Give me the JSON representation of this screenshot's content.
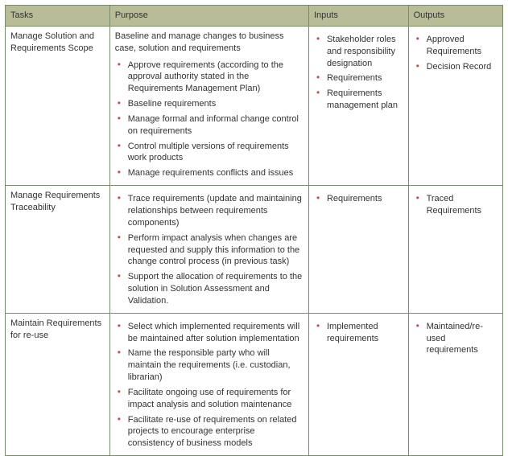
{
  "table": {
    "headers": [
      "Tasks",
      "Purpose",
      "Inputs",
      "Outputs"
    ],
    "header_bg": "#b8bd98",
    "border_color": "#7a8a6a",
    "bullet_color": "#c0504d",
    "font_size_pt": 8,
    "col_widths_pct": [
      21,
      40,
      20,
      19
    ],
    "rows": [
      {
        "task": "Manage Solution and Requirements Scope",
        "purpose_lead": "Baseline and manage changes to business case, solution and requirements",
        "purpose_items": [
          "Approve requirements (according to the approval authority stated in the Requirements Management Plan)",
          "Baseline requirements",
          "Manage formal and informal change control on requirements",
          "Control multiple versions of requirements work products",
          "Manage requirements conflicts and issues"
        ],
        "inputs": [
          "Stakeholder roles and responsibility designation",
          "Requirements",
          "Requirements management plan"
        ],
        "outputs": [
          "Approved Requirements",
          "Decision Record"
        ]
      },
      {
        "task": "Manage Requirements Traceability",
        "purpose_lead": "",
        "purpose_items": [
          "Trace requirements (update and maintaining relationships between requirements components)",
          "Perform impact analysis when changes are requested and supply this information to the change control process (in previous task)",
          "Support the allocation of requirements to the solution in Solution Assessment and Validation."
        ],
        "inputs": [
          "Requirements"
        ],
        "outputs": [
          "Traced Requirements"
        ]
      },
      {
        "task": "Maintain Requirements for re-use",
        "purpose_lead": "",
        "purpose_items": [
          "Select which implemented requirements will be maintained after solution implementation",
          "Name the responsible party who will maintain the requirements (i.e. custodian, librarian)",
          "Facilitate ongoing use of requirements for impact analysis and solution maintenance",
          "Facilitate re-use of requirements on related projects to encourage enterprise consistency of business models"
        ],
        "inputs": [
          "Implemented requirements"
        ],
        "outputs": [
          "Maintained/re-used requirements"
        ]
      }
    ]
  }
}
